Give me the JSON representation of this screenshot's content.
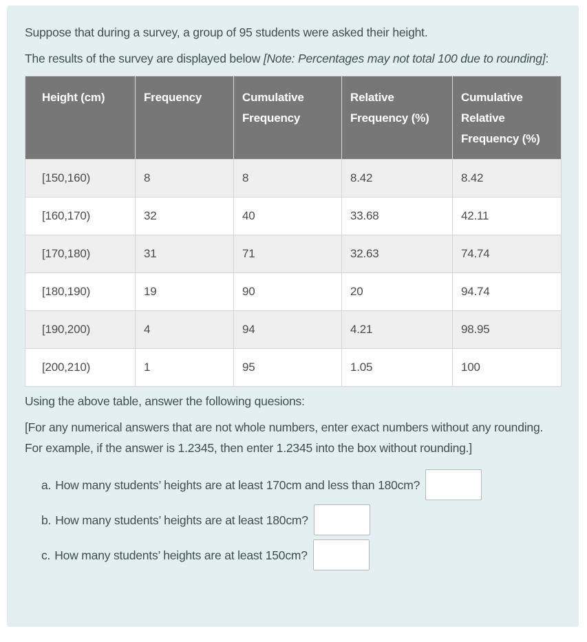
{
  "colors": {
    "page_background": "#ffffff",
    "panel_background": "#e3eff1",
    "table_header_background": "#777777",
    "table_header_text": "#ffffff",
    "table_alt_row_background": "#efefef",
    "body_text": "#404e53",
    "cell_text": "#4b4b4b",
    "input_border": "#b4babc"
  },
  "intro": {
    "line1": "Suppose that during a survey, a group of 95 students were asked their height.",
    "line2_prefix": "The results of the survey are displayed below ",
    "line2_note": "[Note: Percentages may not total 100 due to rounding]",
    "line2_suffix": ":"
  },
  "table": {
    "headers": [
      "Height (cm)",
      "Frequency",
      "Cumulative Frequency",
      "Relative Frequency (%)",
      "Cumulative Relative Frequency (%)"
    ],
    "rows": [
      [
        "[150,160)",
        "8",
        "8",
        "8.42",
        "8.42"
      ],
      [
        "[160,170)",
        "32",
        "40",
        "33.68",
        "42.11"
      ],
      [
        "[170,180)",
        "31",
        "71",
        "32.63",
        "74.74"
      ],
      [
        "[180,190)",
        "19",
        "90",
        "20",
        "94.74"
      ],
      [
        "[190,200)",
        "4",
        "94",
        "4.21",
        "98.95"
      ],
      [
        "[200,210)",
        "1",
        "95",
        "1.05",
        "100"
      ]
    ]
  },
  "instructions": {
    "line1": "Using the above table, answer the following quesions:",
    "line2": "[For any numerical answers that are not whole numbers, enter exact numbers without any rounding. For example, if the answer is 1.2345, then enter 1.2345 into the box without rounding.]"
  },
  "questions": [
    {
      "label": "a.",
      "text": "How many students’ heights are at least 170cm and less than 180cm?",
      "value": ""
    },
    {
      "label": "b.",
      "text": "How many students’ heights are at least 180cm?",
      "value": ""
    },
    {
      "label": "c.",
      "text": "How many students’ heights are at least 150cm?",
      "value": ""
    }
  ]
}
